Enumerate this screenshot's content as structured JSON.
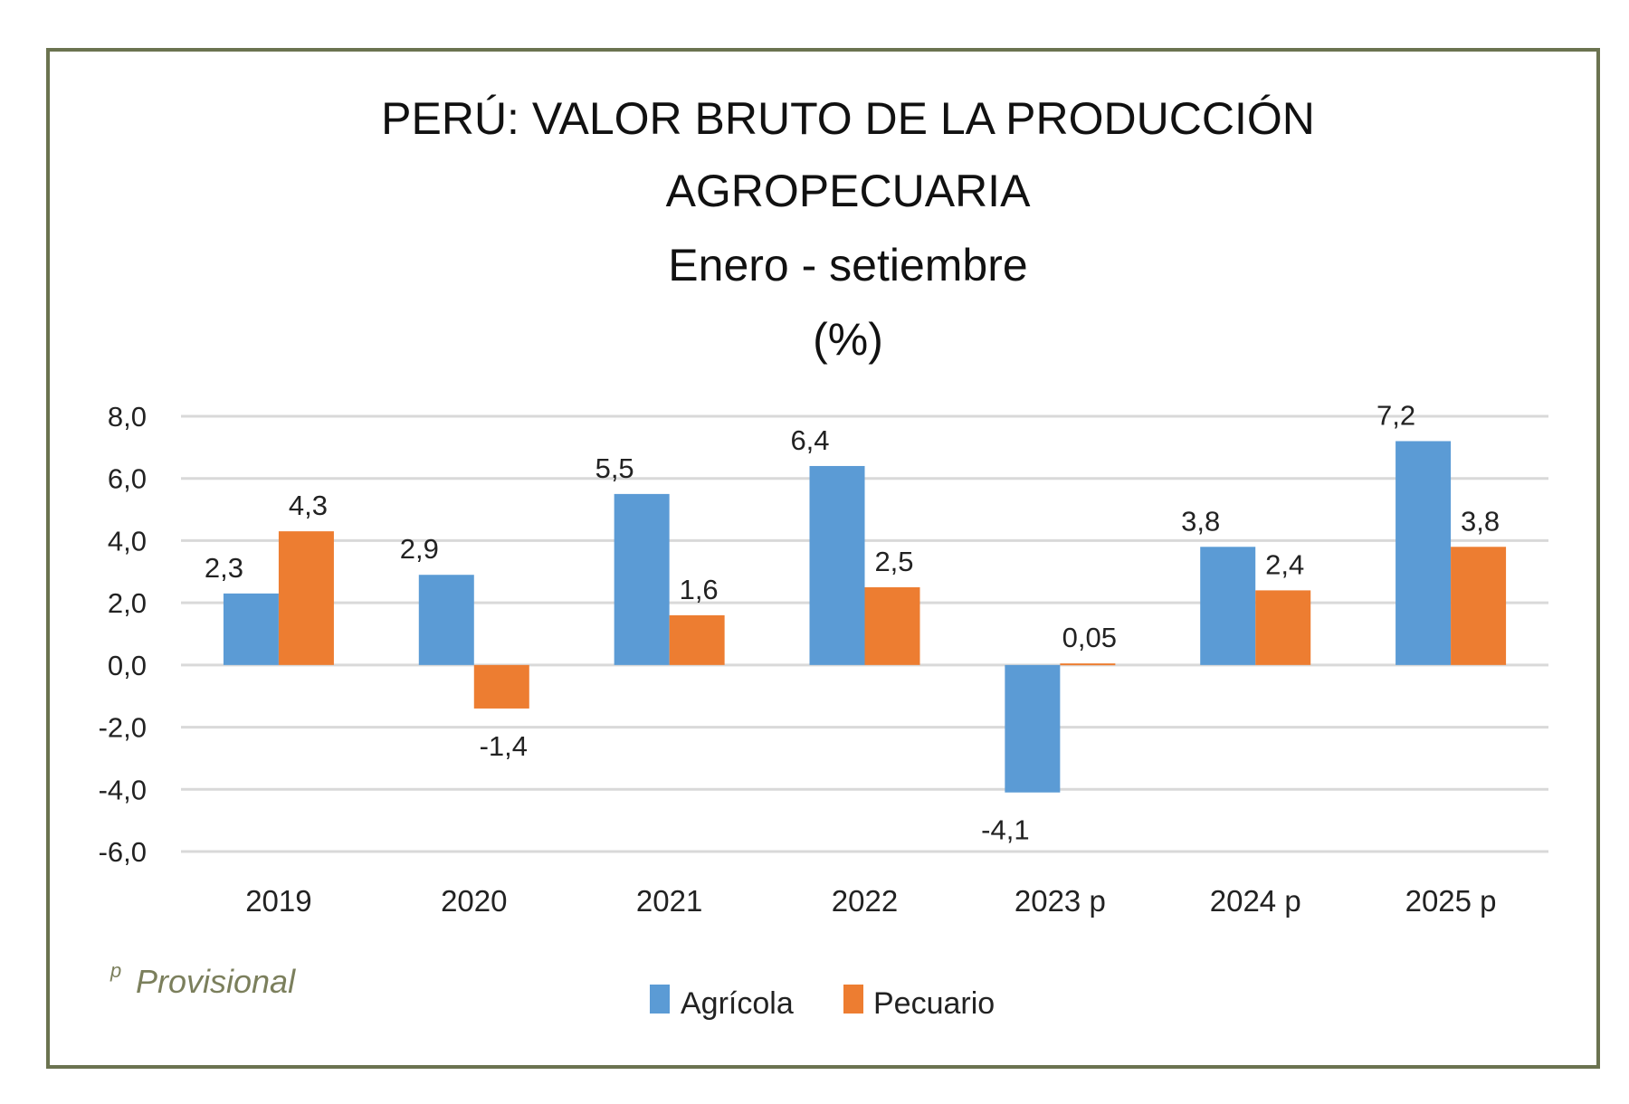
{
  "chart_data": {
    "type": "bar",
    "title": [
      "PERÚ: VALOR BRUTO DE LA PRODUCCIÓN",
      "AGROPECUARIA",
      "Enero - setiembre",
      "(%)"
    ],
    "categories": [
      "2019",
      "2020",
      "2021",
      "2022",
      "2023 p",
      "2024 p",
      "2025 p"
    ],
    "series": [
      {
        "name": "Agrícola",
        "color": "#5b9bd5",
        "values": [
          2.3,
          2.9,
          5.5,
          6.4,
          -4.1,
          3.8,
          7.2
        ],
        "labels": [
          "2,3",
          "2,9",
          "5,5",
          "6,4",
          "-4,1",
          "3,8",
          "7,2"
        ]
      },
      {
        "name": "Pecuario",
        "color": "#ed7d31",
        "values": [
          4.3,
          -1.4,
          1.6,
          2.5,
          0.05,
          2.4,
          3.8
        ],
        "labels": [
          "4,3",
          "-1,4",
          "1,6",
          "2,5",
          "0,05",
          "2,4",
          "3,8"
        ]
      }
    ],
    "ylim": [
      -6,
      8
    ],
    "yticks": [
      8,
      6,
      4,
      2,
      0,
      -2,
      -4,
      -6
    ],
    "ytick_labels": [
      "8,0",
      "6,0",
      "4,0",
      "2,0",
      "0,0",
      "-2,0",
      "-4,0",
      "-6,0"
    ],
    "grid": true,
    "legend_position": "bottom",
    "note": "Provisional",
    "note_superscript": "p",
    "frame_color": "#6b7350"
  }
}
